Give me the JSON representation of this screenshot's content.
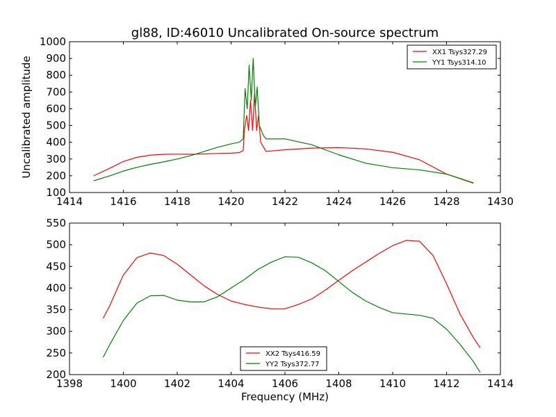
{
  "chart_data": [
    {
      "type": "line",
      "title": "gl88, ID:46010 Uncalibrated On-source spectrum",
      "xlabel": "",
      "ylabel": "Uncalibrated amplitude",
      "xlim": [
        1414,
        1430
      ],
      "ylim": [
        100,
        1000
      ],
      "xticks": [
        1414,
        1416,
        1418,
        1420,
        1422,
        1424,
        1426,
        1428,
        1430
      ],
      "yticks": [
        100,
        200,
        300,
        400,
        500,
        600,
        700,
        800,
        900,
        1000
      ],
      "legend_position": "top-right",
      "grid": false,
      "series": [
        {
          "name": "XX1 Tsys327.29",
          "color": "#ff0000",
          "x": [
            1414.9,
            1415.5,
            1416.0,
            1416.5,
            1417.0,
            1417.5,
            1418.0,
            1418.5,
            1419.0,
            1419.5,
            1420.0,
            1420.3,
            1420.45,
            1420.5,
            1420.58,
            1420.65,
            1420.72,
            1420.8,
            1420.87,
            1420.95,
            1421.02,
            1421.1,
            1421.3,
            1422.0,
            1423.0,
            1424.0,
            1425.0,
            1426.0,
            1427.0,
            1428.0,
            1429.0
          ],
          "y": [
            200,
            245,
            285,
            310,
            323,
            328,
            329,
            328,
            330,
            333,
            335,
            338,
            350,
            480,
            560,
            470,
            650,
            470,
            690,
            470,
            560,
            400,
            345,
            355,
            365,
            368,
            360,
            340,
            295,
            210,
            155
          ]
        },
        {
          "name": "YY1 Tsys314.10",
          "color": "#008000",
          "x": [
            1414.9,
            1415.5,
            1416.0,
            1416.5,
            1417.0,
            1417.5,
            1418.0,
            1418.5,
            1419.0,
            1419.5,
            1420.0,
            1420.3,
            1420.45,
            1420.52,
            1420.6,
            1420.67,
            1420.75,
            1420.82,
            1420.9,
            1420.97,
            1421.05,
            1421.2,
            1421.3,
            1422.0,
            1423.0,
            1424.0,
            1425.0,
            1426.0,
            1427.0,
            1428.0,
            1429.0
          ],
          "y": [
            170,
            200,
            228,
            250,
            268,
            283,
            300,
            320,
            345,
            370,
            390,
            400,
            420,
            720,
            600,
            860,
            650,
            900,
            610,
            730,
            500,
            440,
            420,
            420,
            385,
            325,
            275,
            248,
            235,
            210,
            158
          ]
        }
      ]
    },
    {
      "type": "line",
      "title": "",
      "xlabel": "Frequency (MHz)",
      "ylabel": "",
      "xlim": [
        1398,
        1414
      ],
      "ylim": [
        200,
        550
      ],
      "xticks": [
        1398,
        1400,
        1402,
        1404,
        1406,
        1408,
        1410,
        1412,
        1414
      ],
      "yticks": [
        200,
        250,
        300,
        350,
        400,
        450,
        500,
        550
      ],
      "legend_position": "lower-center",
      "grid": false,
      "series": [
        {
          "name": "XX2 Tsys416.59",
          "color": "#ff0000",
          "x": [
            1399.25,
            1399.5,
            1400.0,
            1400.5,
            1401.0,
            1401.5,
            1402.0,
            1402.5,
            1403.0,
            1403.5,
            1404.0,
            1404.5,
            1405.0,
            1405.5,
            1406.0,
            1406.5,
            1407.0,
            1407.5,
            1408.0,
            1408.5,
            1409.0,
            1409.5,
            1410.0,
            1410.5,
            1411.0,
            1411.5,
            1412.0,
            1412.5,
            1413.0,
            1413.25
          ],
          "y": [
            330,
            360,
            430,
            470,
            481,
            475,
            455,
            430,
            405,
            385,
            370,
            362,
            356,
            352,
            352,
            362,
            375,
            395,
            418,
            440,
            460,
            480,
            498,
            510,
            508,
            475,
            410,
            340,
            285,
            262
          ]
        },
        {
          "name": "YY2 Tsys372.77",
          "color": "#008000",
          "x": [
            1399.25,
            1399.5,
            1400.0,
            1400.5,
            1401.0,
            1401.5,
            1402.0,
            1402.5,
            1403.0,
            1403.5,
            1404.0,
            1404.5,
            1405.0,
            1405.5,
            1406.0,
            1406.5,
            1407.0,
            1407.5,
            1408.0,
            1408.5,
            1409.0,
            1409.5,
            1410.0,
            1410.5,
            1411.0,
            1411.5,
            1412.0,
            1412.5,
            1413.0,
            1413.25
          ],
          "y": [
            240,
            270,
            325,
            365,
            382,
            383,
            372,
            368,
            368,
            380,
            400,
            420,
            443,
            460,
            472,
            471,
            458,
            440,
            415,
            390,
            370,
            355,
            343,
            340,
            337,
            330,
            305,
            270,
            230,
            205
          ]
        }
      ]
    }
  ]
}
